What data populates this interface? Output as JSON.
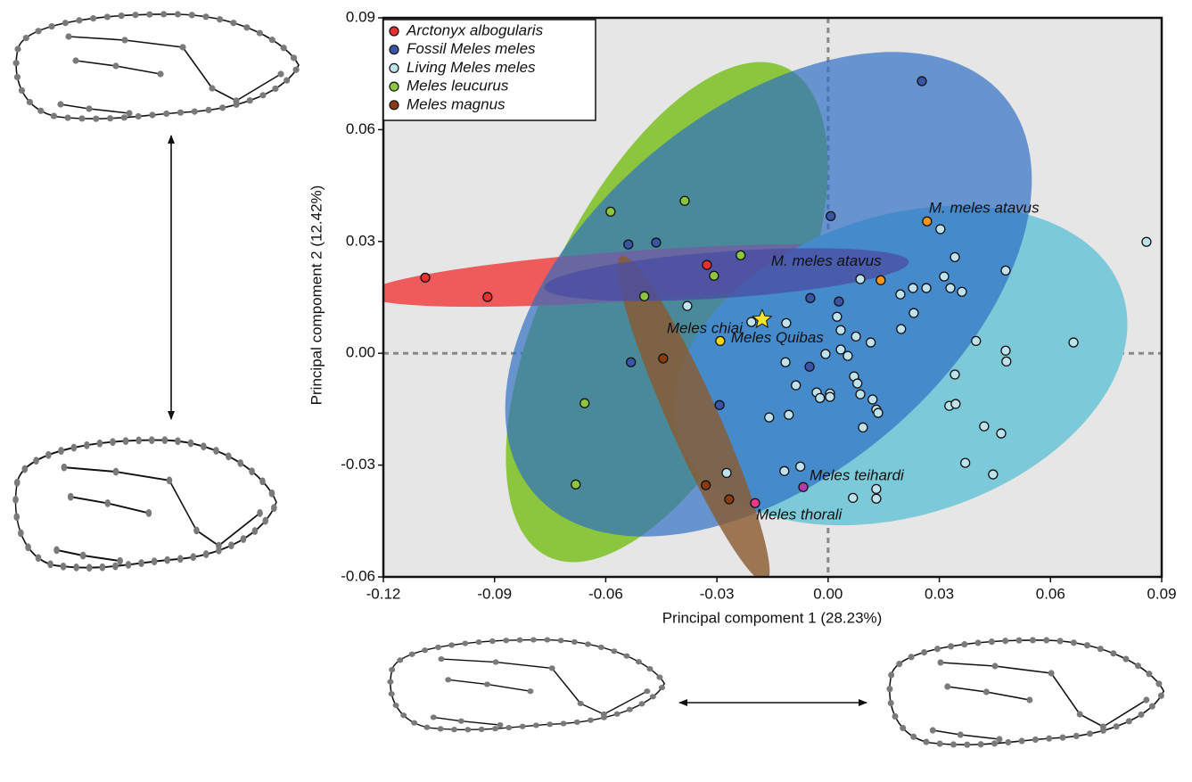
{
  "chart_data": {
    "type": "scatter",
    "xlabel": "Principal compoment 1 (28.23%)",
    "ylabel": "Principal compoment 2 (12.42%)",
    "xlim": [
      -0.12,
      0.09
    ],
    "ylim": [
      -0.06,
      0.09
    ],
    "xticks": [
      -0.12,
      -0.09,
      -0.06,
      -0.03,
      {
        "value": 0,
        "label": "0.00"
      },
      0.03,
      0.06,
      0.09
    ],
    "yticks": [
      -0.06,
      -0.03,
      {
        "value": 0,
        "label": "0.00"
      },
      0.03,
      0.06,
      0.09
    ],
    "vlines": [
      0
    ],
    "hlines": [
      0
    ],
    "legend": "upper left",
    "series": [
      {
        "name": "Arctonyx albogularis",
        "color": "#e8312f",
        "x": [
          -0.1087,
          -0.0919,
          -0.0327
        ],
        "y": [
          0.0203,
          0.0151,
          0.0237
        ]
      },
      {
        "name": "Fossil Meles meles",
        "color": "#3a55a6",
        "x": [
          0.0253,
          0.0007,
          -0.0539,
          -0.0464,
          -0.0048,
          0.0029,
          -0.0532,
          -0.005,
          -0.0293
        ],
        "y": [
          0.073,
          0.0368,
          0.0292,
          0.0297,
          0.0148,
          0.0139,
          -0.0024,
          -0.0036,
          -0.0139
        ]
      },
      {
        "name": "Living Meles meles",
        "color": "#bfe3ee",
        "x": [
          0.0859,
          0.0087,
          0.0229,
          0.0303,
          0.0342,
          0.0313,
          0.033,
          0.0361,
          0.0265,
          0.0479,
          0.0195,
          0.0231,
          0.0197,
          0.0024,
          0.0034,
          0.0075,
          0.0115,
          -0.0113,
          -0.0207,
          -0.038,
          -0.0007,
          0.0034,
          0.0053,
          0.0399,
          0.0479,
          0.0481,
          0.0662,
          -0.0115,
          -0.0087,
          -0.0031,
          0.0005,
          0.0005,
          -0.0022,
          0.007,
          0.0079,
          0.0087,
          0.012,
          0.013,
          0.0135,
          0.0094,
          -0.0106,
          -0.0159,
          0.0342,
          0.0327,
          0.0344,
          0.0421,
          0.0467,
          0.037,
          0.0445,
          -0.0274,
          -0.0118,
          -0.0075,
          0.0067,
          0.013,
          0.013
        ],
        "y": [
          0.0299,
          0.0199,
          0.0175,
          0.0333,
          0.0258,
          0.0206,
          0.0175,
          0.0165,
          0.0175,
          0.0222,
          0.0158,
          0.0108,
          0.0065,
          0.0098,
          0.0062,
          0.0045,
          0.0029,
          0.0081,
          0.0084,
          0.0127,
          -0.0002,
          0.001,
          -0.0007,
          0.0033,
          0.0007,
          -0.0022,
          0.0029,
          -0.0024,
          -0.0086,
          -0.0105,
          -0.0108,
          -0.0117,
          -0.012,
          -0.0062,
          -0.0081,
          -0.011,
          -0.0124,
          -0.0151,
          -0.016,
          -0.0199,
          -0.0165,
          -0.0172,
          -0.0057,
          -0.0141,
          -0.0136,
          -0.0196,
          -0.0215,
          -0.0294,
          -0.0325,
          -0.0321,
          -0.0316,
          -0.0304,
          -0.0388,
          -0.0364,
          -0.039
        ]
      },
      {
        "name": "Meles leucurus",
        "color": "#8cc63f",
        "x": [
          -0.0587,
          -0.0387,
          -0.0236,
          -0.0308,
          -0.0496,
          -0.0657,
          -0.0681
        ],
        "y": [
          0.038,
          0.0409,
          0.0263,
          0.0208,
          0.0153,
          -0.0134,
          -0.0352
        ]
      },
      {
        "name": "Meles magnus",
        "color": "#8b3a12",
        "x": [
          -0.0445,
          -0.033,
          -0.0267
        ],
        "y": [
          -0.0014,
          -0.0354,
          -0.0392
        ]
      }
    ],
    "annotations": [
      {
        "label": "M. meles atavus",
        "x": 0.0267,
        "y": 0.0354,
        "color": "#f7941d"
      },
      {
        "label": "M. meles atavus",
        "x": 0.0142,
        "y": 0.0196,
        "color": "#f7941d"
      },
      {
        "label": "Meles Quibas",
        "x": -0.0291,
        "y": 0.0033,
        "color": "#f5d90a"
      },
      {
        "label": "Meles chiai",
        "x": -0.0178,
        "y": 0.0091,
        "color": "#f5e52a",
        "marker": "star"
      },
      {
        "label": "Meles teihardi",
        "x": -0.0067,
        "y": -0.0359,
        "color": "#b23ab0"
      },
      {
        "label": "Meles thorali",
        "x": -0.0197,
        "y": -0.0402,
        "color": "#e8388a"
      }
    ]
  }
}
